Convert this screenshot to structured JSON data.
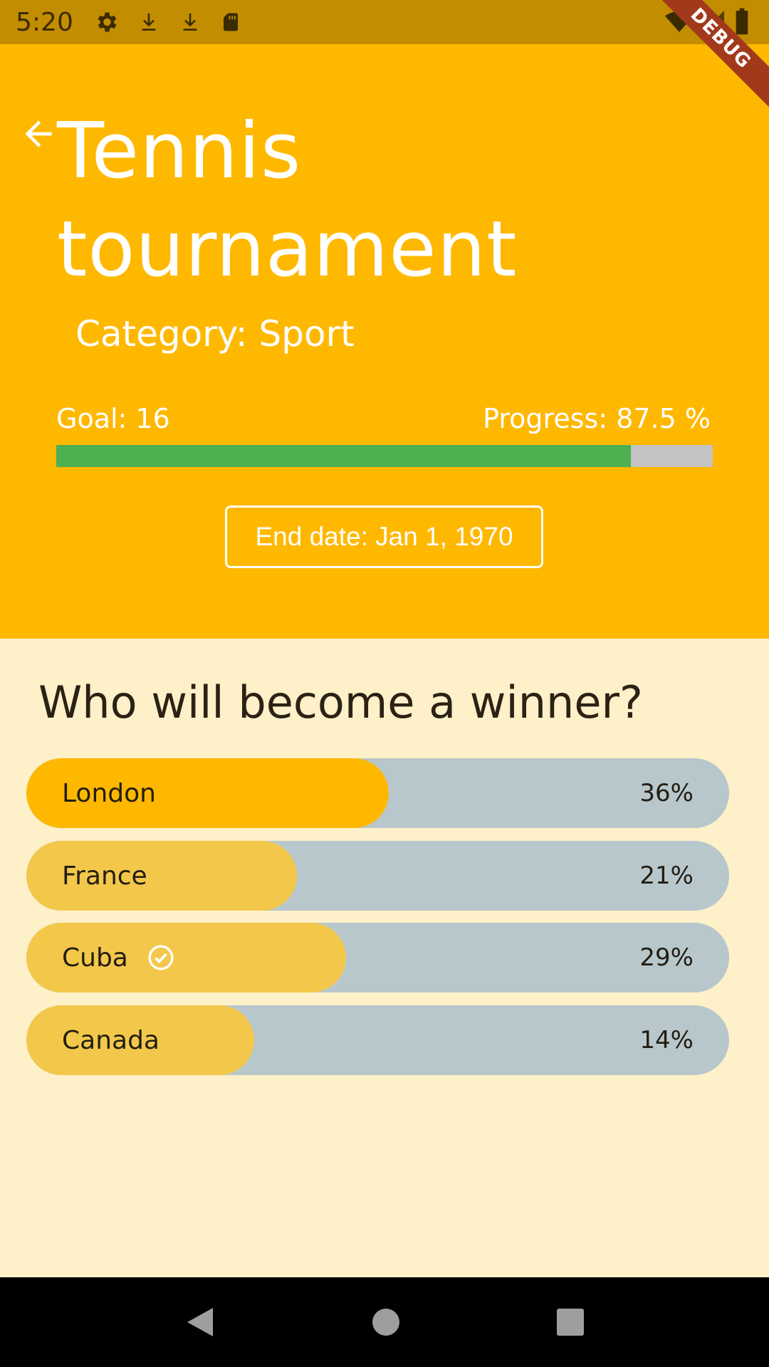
{
  "status_bar": {
    "time": "5:20",
    "icons": [
      "gear-icon",
      "download-icon",
      "download-icon",
      "sd-card-icon",
      "wifi-icon",
      "signal-icon",
      "battery-icon"
    ]
  },
  "debug_banner": "DEBUG",
  "header": {
    "title": "Tennis tournament",
    "category": "Category: Sport",
    "goal": "Goal: 16",
    "progress_label": "Progress: 87.5 %",
    "progress_value": 87.5,
    "end_date": "End date: Jan 1, 1970",
    "background": "#FFB800"
  },
  "poll": {
    "question": "Who will become a winner?",
    "options": [
      {
        "label": "London",
        "percent": 36,
        "percent_label": "36%",
        "fill_color": "#FFB800",
        "selected": false
      },
      {
        "label": "France",
        "percent": 21,
        "percent_label": "21%",
        "fill_color": "#F3C84A",
        "selected": false
      },
      {
        "label": "Cuba",
        "percent": 29,
        "percent_label": "29%",
        "fill_color": "#F3C84A",
        "selected": true
      },
      {
        "label": "Canada",
        "percent": 14,
        "percent_label": "14%",
        "fill_color": "#F3C84A",
        "selected": false
      }
    ]
  },
  "colors": {
    "progress_fill": "#4CAF50",
    "progress_track": "#C3C3C3",
    "poll_track": "#B8C7CC",
    "page_bg": "#FEF0C8"
  },
  "nav_bar": {
    "icons": [
      "back-triangle-icon",
      "home-circle-icon",
      "recents-square-icon"
    ]
  }
}
